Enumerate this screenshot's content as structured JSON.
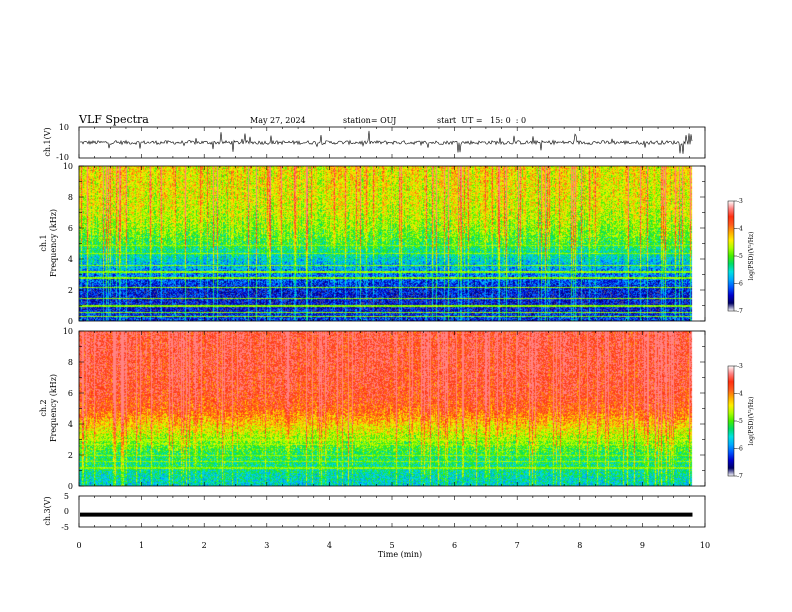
{
  "header": {
    "title": "VLF Spectra",
    "date": "May 27, 2024",
    "station": "station= OUJ",
    "start": "start  UT =   15: 0  : 0"
  },
  "colors": {
    "colormap": [
      "#ffffff",
      "#000066",
      "#0000cc",
      "#0055ff",
      "#00aaff",
      "#00e0e0",
      "#00dd66",
      "#44ee00",
      "#aaff00",
      "#ffee00",
      "#ffaa00",
      "#ff5a1e",
      "#ff3010",
      "#ff8080",
      "#ffffff"
    ],
    "trace": "#000000"
  },
  "chart_data": [
    {
      "type": "line",
      "panel": "ch1-waveform",
      "ylabel": "ch.1(V)",
      "ylim": [
        -10,
        10
      ],
      "yticks": [
        "10",
        "-10"
      ],
      "x_range_min": [
        0,
        9.8
      ],
      "baseline_v": 0,
      "noise_amplitude_v": 2.5
    },
    {
      "type": "heatmap",
      "panel": "ch1-spectrogram",
      "ylabel": "ch.1\nFrequency (kHz)",
      "ylim": [
        0,
        10
      ],
      "yticks": [
        "0",
        "2",
        "4",
        "6",
        "8",
        "10"
      ],
      "x_range_min": [
        0,
        9.8
      ],
      "colorbar": {
        "label": "log(PSD)(V²/Hz)",
        "range": [
          -7,
          -3
        ],
        "ticks": [
          "-3",
          "-4",
          "-5",
          "-6",
          "-7"
        ]
      },
      "level_profile_by_freq_khz": [
        [
          0,
          -6.2
        ],
        [
          1,
          -6.5
        ],
        [
          2,
          -6.4
        ],
        [
          3,
          -6.0
        ],
        [
          4,
          -5.6
        ],
        [
          5,
          -5.1
        ],
        [
          6,
          -4.8
        ],
        [
          7,
          -4.6
        ],
        [
          8,
          -4.5
        ],
        [
          10,
          -4.4
        ]
      ],
      "persistent_lines_khz": [
        0.3,
        0.6,
        1.0,
        1.5,
        2.2,
        2.8,
        3.2,
        3.6,
        4.4,
        4.9
      ]
    },
    {
      "type": "heatmap",
      "panel": "ch2-spectrogram",
      "ylabel": "ch.2\nFrequency (kHz)",
      "ylim": [
        0,
        10
      ],
      "yticks": [
        "0",
        "2",
        "4",
        "6",
        "8",
        "10"
      ],
      "x_range_min": [
        0,
        9.8
      ],
      "colorbar": {
        "label": "log(PSD)(V²/Hz)",
        "range": [
          -7,
          -3
        ],
        "ticks": [
          "-3",
          "-4",
          "-5",
          "-6",
          "-7"
        ]
      },
      "level_profile_by_freq_khz": [
        [
          0,
          -5.6
        ],
        [
          1,
          -5.4
        ],
        [
          2,
          -5.2
        ],
        [
          3,
          -4.8
        ],
        [
          4,
          -4.3
        ],
        [
          5,
          -3.8
        ],
        [
          6,
          -3.6
        ],
        [
          8,
          -3.5
        ],
        [
          10,
          -3.45
        ]
      ],
      "persistent_lines_khz": [
        1.2,
        1.6,
        2.0,
        2.7,
        3.0
      ]
    },
    {
      "type": "line",
      "panel": "ch3-waveform",
      "ylabel": "ch.3(V)",
      "ylim": [
        -5,
        5
      ],
      "yticks": [
        "5",
        "0",
        "-5"
      ],
      "x_range_min": [
        0,
        9.8
      ],
      "level_v": -1
    }
  ],
  "xaxis": {
    "label": "Time (min)",
    "xlim": [
      0,
      10
    ],
    "ticks": [
      "0",
      "1",
      "2",
      "3",
      "4",
      "5",
      "6",
      "7",
      "8",
      "9",
      "10"
    ]
  }
}
